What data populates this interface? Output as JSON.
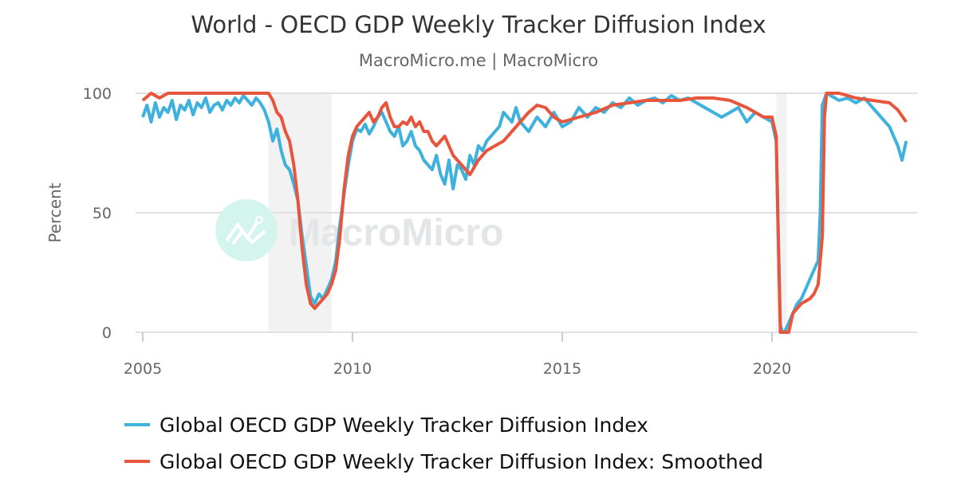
{
  "header": {
    "title": "World - OECD GDP Weekly Tracker Diffusion Index",
    "subtitle": "MacroMicro.me | MacroMicro"
  },
  "watermark": {
    "text": "MacroMicro"
  },
  "legend": [
    {
      "label": "Global OECD GDP Weekly Tracker Diffusion Index",
      "color": "#3eb1dc"
    },
    {
      "label": "Global OECD GDP Weekly Tracker Diffusion Index: Smoothed",
      "color": "#e8553d"
    }
  ],
  "chart_data": {
    "type": "line",
    "title": "World - OECD GDP Weekly Tracker Diffusion Index",
    "subtitle": "MacroMicro.me | MacroMicro",
    "xlabel": "",
    "ylabel": "Percent",
    "ylim": [
      0,
      100
    ],
    "yticks": [
      0,
      50,
      100
    ],
    "xticks": [
      2005,
      2010,
      2015,
      2020
    ],
    "grid": true,
    "legend_position": "bottom",
    "recession_shading": [
      [
        2008.0,
        2009.5
      ],
      [
        2020.1,
        2020.35
      ]
    ],
    "series": [
      {
        "name": "Global OECD GDP Weekly Tracker Diffusion Index",
        "color": "#3eb1dc",
        "x": [
          2005.0,
          2005.1,
          2005.2,
          2005.3,
          2005.4,
          2005.5,
          2005.6,
          2005.7,
          2005.8,
          2005.9,
          2006.0,
          2006.1,
          2006.2,
          2006.3,
          2006.4,
          2006.5,
          2006.6,
          2006.7,
          2006.8,
          2006.9,
          2007.0,
          2007.1,
          2007.2,
          2007.3,
          2007.4,
          2007.5,
          2007.6,
          2007.7,
          2007.8,
          2007.9,
          2008.0,
          2008.1,
          2008.2,
          2008.3,
          2008.4,
          2008.5,
          2008.6,
          2008.7,
          2008.8,
          2008.9,
          2009.0,
          2009.1,
          2009.2,
          2009.3,
          2009.4,
          2009.5,
          2009.6,
          2009.7,
          2009.8,
          2009.9,
          2010.0,
          2010.1,
          2010.2,
          2010.3,
          2010.4,
          2010.5,
          2010.6,
          2010.7,
          2010.8,
          2010.9,
          2011.0,
          2011.1,
          2011.2,
          2011.3,
          2011.4,
          2011.5,
          2011.6,
          2011.7,
          2011.8,
          2011.9,
          2012.0,
          2012.1,
          2012.2,
          2012.3,
          2012.4,
          2012.5,
          2012.6,
          2012.7,
          2012.8,
          2012.9,
          2013.0,
          2013.1,
          2013.2,
          2013.3,
          2013.4,
          2013.5,
          2013.6,
          2013.7,
          2013.8,
          2013.9,
          2014.0,
          2014.2,
          2014.4,
          2014.6,
          2014.8,
          2015.0,
          2015.2,
          2015.4,
          2015.6,
          2015.8,
          2016.0,
          2016.2,
          2016.4,
          2016.6,
          2016.8,
          2017.0,
          2017.2,
          2017.4,
          2017.6,
          2017.8,
          2018.0,
          2018.2,
          2018.4,
          2018.6,
          2018.8,
          2019.0,
          2019.2,
          2019.4,
          2019.6,
          2019.8,
          2020.0,
          2020.1,
          2020.15,
          2020.2,
          2020.25,
          2020.3,
          2020.4,
          2020.5,
          2020.6,
          2020.7,
          2020.8,
          2020.9,
          2021.0,
          2021.1,
          2021.15,
          2021.2,
          2021.3,
          2021.4,
          2021.6,
          2021.8,
          2022.0,
          2022.2,
          2022.4,
          2022.6,
          2022.8,
          2023.0,
          2023.1,
          2023.2
        ],
        "values": [
          90,
          95,
          88,
          96,
          90,
          94,
          92,
          97,
          89,
          95,
          93,
          97,
          91,
          96,
          94,
          98,
          92,
          95,
          96,
          93,
          97,
          95,
          98,
          96,
          99,
          97,
          95,
          98,
          96,
          93,
          88,
          80,
          85,
          76,
          70,
          68,
          62,
          55,
          40,
          28,
          15,
          12,
          16,
          14,
          18,
          22,
          30,
          45,
          58,
          70,
          80,
          85,
          84,
          87,
          83,
          86,
          90,
          92,
          88,
          84,
          82,
          86,
          78,
          80,
          84,
          78,
          76,
          72,
          70,
          68,
          74,
          66,
          62,
          72,
          60,
          70,
          68,
          64,
          74,
          70,
          78,
          76,
          80,
          82,
          84,
          86,
          92,
          90,
          88,
          94,
          88,
          84,
          90,
          86,
          92,
          86,
          88,
          94,
          90,
          94,
          92,
          96,
          94,
          98,
          95,
          97,
          98,
          96,
          99,
          97,
          98,
          96,
          94,
          92,
          90,
          92,
          94,
          88,
          92,
          90,
          88,
          80,
          40,
          3,
          0,
          0,
          4,
          8,
          12,
          14,
          18,
          22,
          26,
          30,
          50,
          95,
          100,
          99,
          97,
          98,
          96,
          98,
          94,
          90,
          86,
          78,
          72,
          80
        ]
      },
      {
        "name": "Global OECD GDP Weekly Tracker Diffusion Index: Smoothed",
        "color": "#e8553d",
        "x": [
          2005.0,
          2005.2,
          2005.4,
          2005.6,
          2005.8,
          2006.0,
          2006.4,
          2006.8,
          2007.2,
          2007.6,
          2008.0,
          2008.1,
          2008.2,
          2008.3,
          2008.4,
          2008.5,
          2008.6,
          2008.7,
          2008.8,
          2008.9,
          2009.0,
          2009.1,
          2009.2,
          2009.3,
          2009.4,
          2009.5,
          2009.6,
          2009.7,
          2009.8,
          2009.9,
          2010.0,
          2010.1,
          2010.2,
          2010.3,
          2010.4,
          2010.5,
          2010.6,
          2010.7,
          2010.8,
          2010.9,
          2011.0,
          2011.1,
          2011.2,
          2011.3,
          2011.4,
          2011.5,
          2011.6,
          2011.7,
          2011.8,
          2011.9,
          2012.0,
          2012.2,
          2012.4,
          2012.6,
          2012.8,
          2013.0,
          2013.2,
          2013.4,
          2013.6,
          2013.8,
          2014.0,
          2014.2,
          2014.4,
          2014.6,
          2014.8,
          2015.0,
          2015.4,
          2015.8,
          2016.2,
          2016.6,
          2017.0,
          2017.4,
          2017.8,
          2018.2,
          2018.6,
          2019.0,
          2019.4,
          2019.8,
          2020.0,
          2020.1,
          2020.15,
          2020.2,
          2020.25,
          2020.3,
          2020.4,
          2020.5,
          2020.6,
          2020.7,
          2020.8,
          2020.9,
          2021.0,
          2021.1,
          2021.2,
          2021.25,
          2021.3,
          2021.6,
          2022.0,
          2022.4,
          2022.8,
          2023.0,
          2023.2
        ],
        "values": [
          97,
          100,
          98,
          100,
          100,
          100,
          100,
          100,
          100,
          100,
          100,
          97,
          92,
          90,
          84,
          80,
          70,
          55,
          35,
          20,
          12,
          10,
          12,
          14,
          16,
          20,
          26,
          40,
          60,
          74,
          82,
          86,
          88,
          90,
          92,
          88,
          90,
          94,
          96,
          90,
          86,
          86,
          88,
          87,
          90,
          86,
          88,
          84,
          84,
          80,
          78,
          82,
          74,
          70,
          66,
          72,
          76,
          78,
          80,
          84,
          88,
          92,
          95,
          94,
          90,
          88,
          90,
          92,
          95,
          96,
          97,
          97,
          97,
          98,
          98,
          97,
          94,
          90,
          90,
          82,
          40,
          0,
          0,
          0,
          0,
          8,
          10,
          12,
          13,
          14,
          16,
          20,
          40,
          90,
          100,
          100,
          98,
          97,
          96,
          93,
          88
        ]
      }
    ]
  }
}
